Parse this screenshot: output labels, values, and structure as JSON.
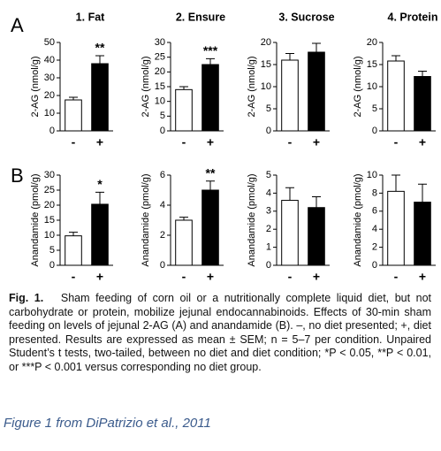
{
  "panel_labels": [
    "A",
    "B"
  ],
  "chart_data": [
    {
      "type": "bar",
      "title": "1. Fat",
      "ylabel": "2-AG (nmol/g)",
      "categories": [
        "-",
        "+"
      ],
      "values": [
        17.5,
        38
      ],
      "errors": [
        1.5,
        4.5
      ],
      "colors": [
        "#ffffff",
        "#000000"
      ],
      "ylim": [
        0,
        50
      ],
      "yticks": [
        0,
        10,
        20,
        30,
        40,
        50
      ],
      "annotations": [
        {
          "text": "**",
          "category": "+"
        }
      ]
    },
    {
      "type": "bar",
      "title": "2. Ensure",
      "ylabel": "2-AG (nmol/g)",
      "categories": [
        "-",
        "+"
      ],
      "values": [
        14,
        22.5
      ],
      "errors": [
        1,
        2
      ],
      "colors": [
        "#ffffff",
        "#000000"
      ],
      "ylim": [
        0,
        30
      ],
      "yticks": [
        0,
        5,
        10,
        15,
        20,
        25,
        30
      ],
      "annotations": [
        {
          "text": "***",
          "category": "+"
        }
      ]
    },
    {
      "type": "bar",
      "title": "3. Sucrose",
      "ylabel": "2-AG (nmol/g)",
      "categories": [
        "-",
        "+"
      ],
      "values": [
        16,
        17.8
      ],
      "errors": [
        1.5,
        2
      ],
      "colors": [
        "#ffffff",
        "#000000"
      ],
      "ylim": [
        0,
        20
      ],
      "yticks": [
        0,
        5,
        10,
        15,
        20
      ]
    },
    {
      "type": "bar",
      "title": "4. Protein",
      "ylabel": "2-AG (nmol/g)",
      "categories": [
        "-",
        "+"
      ],
      "values": [
        15.8,
        12.3
      ],
      "errors": [
        1.2,
        1.2
      ],
      "colors": [
        "#ffffff",
        "#000000"
      ],
      "ylim": [
        0,
        20
      ],
      "yticks": [
        0,
        5,
        10,
        15,
        20
      ]
    },
    {
      "type": "bar",
      "ylabel": "Anandamide (pmol/g)",
      "categories": [
        "-",
        "+"
      ],
      "values": [
        9.8,
        20.3
      ],
      "errors": [
        1.2,
        4
      ],
      "colors": [
        "#ffffff",
        "#000000"
      ],
      "ylim": [
        0,
        30
      ],
      "yticks": [
        0,
        5,
        10,
        15,
        20,
        25,
        30
      ],
      "annotations": [
        {
          "text": "*",
          "category": "+"
        }
      ]
    },
    {
      "type": "bar",
      "ylabel": "Anandamide (pmol/g)",
      "categories": [
        "-",
        "+"
      ],
      "values": [
        3,
        5
      ],
      "errors": [
        0.2,
        0.6
      ],
      "colors": [
        "#ffffff",
        "#000000"
      ],
      "ylim": [
        0,
        6
      ],
      "yticks": [
        0,
        2,
        4,
        6
      ],
      "annotations": [
        {
          "text": "**",
          "category": "+"
        }
      ]
    },
    {
      "type": "bar",
      "ylabel": "Anandamide (pmol/g)",
      "categories": [
        "-",
        "+"
      ],
      "values": [
        3.6,
        3.2
      ],
      "errors": [
        0.7,
        0.6
      ],
      "colors": [
        "#ffffff",
        "#000000"
      ],
      "ylim": [
        0,
        5
      ],
      "yticks": [
        0,
        1,
        2,
        3,
        4,
        5
      ]
    },
    {
      "type": "bar",
      "ylabel": "Anandamide (pmol/g)",
      "categories": [
        "-",
        "+"
      ],
      "values": [
        8.2,
        7
      ],
      "errors": [
        1.8,
        2
      ],
      "colors": [
        "#ffffff",
        "#000000"
      ],
      "ylim": [
        0,
        10
      ],
      "yticks": [
        0,
        2,
        4,
        6,
        8,
        10
      ]
    }
  ],
  "caption": {
    "label": "Fig. 1.",
    "text": "Sham feeding of corn oil or a nutritionally complete liquid diet, but not carbohydrate or protein, mobilize jejunal endocannabinoids. Effects of 30-min sham feeding on levels of jejunal 2-AG (A) and anandamide (B). –, no diet presented; +, diet presented. Results are expressed as mean ± SEM; n = 5–7 per condition. Unpaired Student’s t tests, two-tailed, between no diet and diet condition; *P < 0.05, **P < 0.01, or ***P < 0.001 versus corresponding no diet group."
  },
  "credit": "Figure 1 from DiPatrizio et al., 2011"
}
